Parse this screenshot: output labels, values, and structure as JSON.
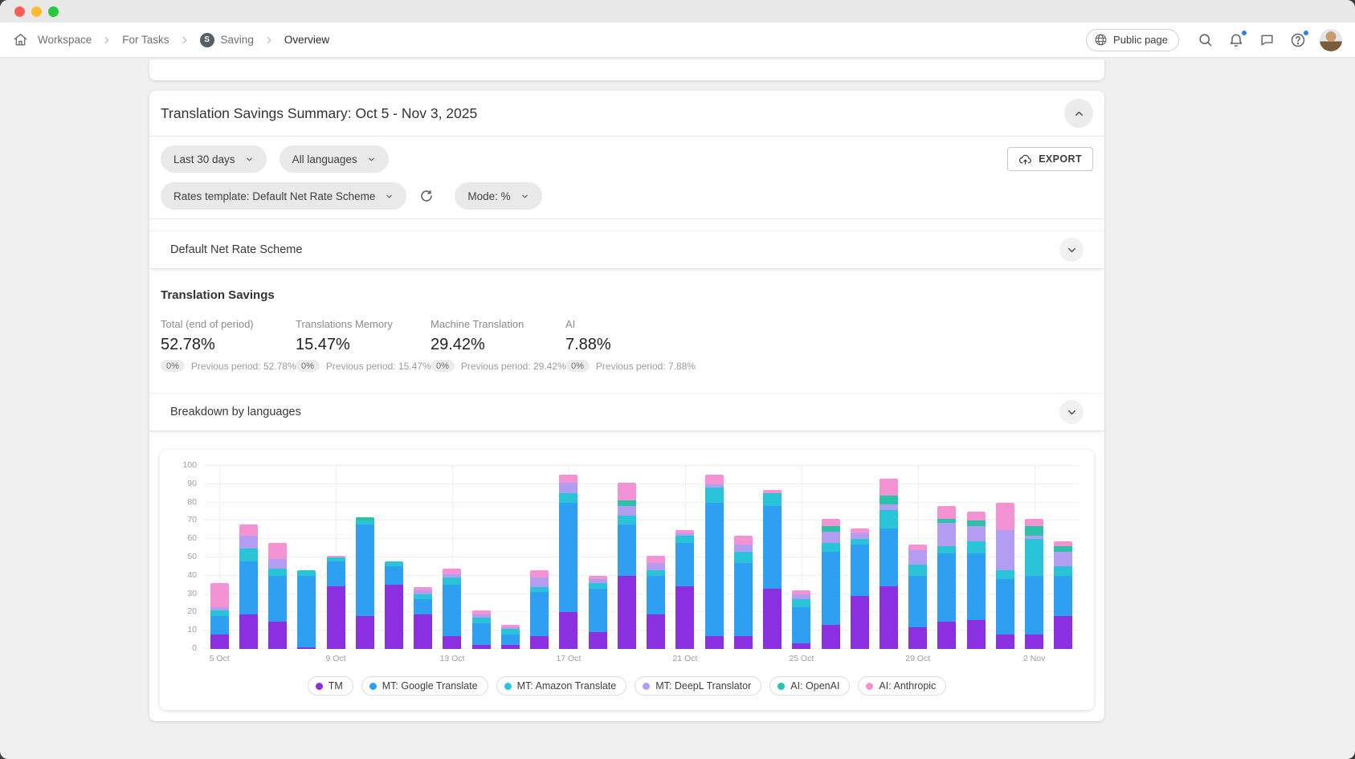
{
  "window": {
    "traffic_lights": {
      "close": "#ff5f57",
      "minimize": "#febc2e",
      "zoom": "#28c840"
    }
  },
  "nav": {
    "breadcrumb": {
      "items": [
        "Workspace",
        "For Tasks",
        "Saving",
        "Overview"
      ],
      "saving_badge": "S"
    },
    "public_page_label": "Public page"
  },
  "summary": {
    "title": "Translation Savings Summary: Oct 5 - Nov 3, 2025",
    "filters": {
      "date_range": "Last 30 days",
      "languages": "All languages",
      "rates_template": "Rates template: Default Net Rate Scheme",
      "mode": "Mode: %"
    },
    "export_label": "EXPORT",
    "rate_scheme_section_title": "Default Net Rate Scheme",
    "savings_heading": "Translation Savings",
    "stats": [
      {
        "label": "Total (end of period)",
        "value": "52.78%",
        "delta": "0%",
        "previous": "Previous period: 52.78%"
      },
      {
        "label": "Translations Memory",
        "value": "15.47%",
        "delta": "0%",
        "previous": "Previous period: 15.47%"
      },
      {
        "label": "Machine Translation",
        "value": "29.42%",
        "delta": "0%",
        "previous": "Previous period: 29.42%"
      },
      {
        "label": "AI",
        "value": "7.88%",
        "delta": "0%",
        "previous": "Previous period: 7.88%"
      }
    ],
    "breakdown_section_title": "Breakdown by languages"
  },
  "colors": {
    "notification_dot": "#2e7cf6"
  },
  "chart_data": {
    "type": "bar",
    "stacked": true,
    "title": "",
    "xlabel": "",
    "ylabel": "",
    "ylim": [
      0,
      100
    ],
    "y_step": 10,
    "y_ticks": [
      0,
      10,
      20,
      30,
      40,
      50,
      60,
      70,
      80,
      90,
      100
    ],
    "grid": true,
    "legend_position": "bottom",
    "tick_every": 4,
    "x": [
      "5 Oct",
      "6 Oct",
      "7 Oct",
      "8 Oct",
      "9 Oct",
      "10 Oct",
      "11 Oct",
      "12 Oct",
      "13 Oct",
      "14 Oct",
      "15 Oct",
      "16 Oct",
      "17 Oct",
      "18 Oct",
      "19 Oct",
      "20 Oct",
      "21 Oct",
      "22 Oct",
      "23 Oct",
      "24 Oct",
      "25 Oct",
      "26 Oct",
      "27 Oct",
      "28 Oct",
      "29 Oct",
      "30 Oct",
      "31 Oct",
      "1 Nov",
      "2 Nov",
      "3 Nov"
    ],
    "x_tick_labels": [
      "5 Oct",
      "9 Oct",
      "13 Oct",
      "17 Oct",
      "21 Oct",
      "25 Oct",
      "29 Oct",
      "2 Nov"
    ],
    "series": [
      {
        "name": "TM",
        "color": "#8a30e0",
        "values": [
          8,
          19,
          15,
          1,
          34,
          18,
          35,
          19,
          7,
          2,
          2,
          7,
          20,
          9,
          40,
          19,
          34,
          7,
          7,
          33,
          3,
          13,
          29,
          34,
          12,
          15,
          16,
          8,
          8,
          18
        ]
      },
      {
        "name": "MT: Google Translate",
        "color": "#2f9ff2",
        "values": [
          10,
          29,
          25,
          39,
          14,
          50,
          10,
          8,
          28,
          12,
          6,
          24,
          60,
          24,
          28,
          21,
          24,
          73,
          40,
          45,
          20,
          40,
          28,
          32,
          28,
          37,
          36,
          30,
          32,
          22
        ]
      },
      {
        "name": "MT: Amazon Translate",
        "color": "#29c4d8",
        "values": [
          3,
          7,
          4,
          3,
          2,
          2,
          3,
          3,
          4,
          3,
          3,
          3,
          5,
          3,
          5,
          3,
          4,
          8,
          6,
          7,
          4,
          5,
          3,
          10,
          6,
          4,
          7,
          5,
          20,
          5
        ]
      },
      {
        "name": "MT: DeepL Translator",
        "color": "#b39df3",
        "values": [
          2,
          7,
          5,
          0,
          0,
          0,
          0,
          2,
          2,
          2,
          1,
          5,
          6,
          2,
          5,
          4,
          1,
          2,
          4,
          0,
          3,
          6,
          3,
          3,
          8,
          13,
          8,
          22,
          2,
          8
        ]
      },
      {
        "name": "AI: OpenAI",
        "color": "#2bc3a8",
        "values": [
          0,
          0,
          0,
          0,
          0,
          2,
          0,
          0,
          0,
          0,
          0,
          0,
          0,
          0,
          3,
          0,
          0,
          0,
          0,
          0,
          0,
          3,
          0,
          5,
          0,
          2,
          3,
          0,
          5,
          3
        ]
      },
      {
        "name": "AI: Anthropic",
        "color": "#f493d4",
        "values": [
          13,
          6,
          9,
          0,
          1,
          0,
          0,
          2,
          3,
          2,
          1,
          4,
          4,
          2,
          10,
          4,
          2,
          5,
          5,
          2,
          2,
          4,
          3,
          9,
          3,
          7,
          5,
          15,
          4,
          3
        ]
      }
    ]
  }
}
